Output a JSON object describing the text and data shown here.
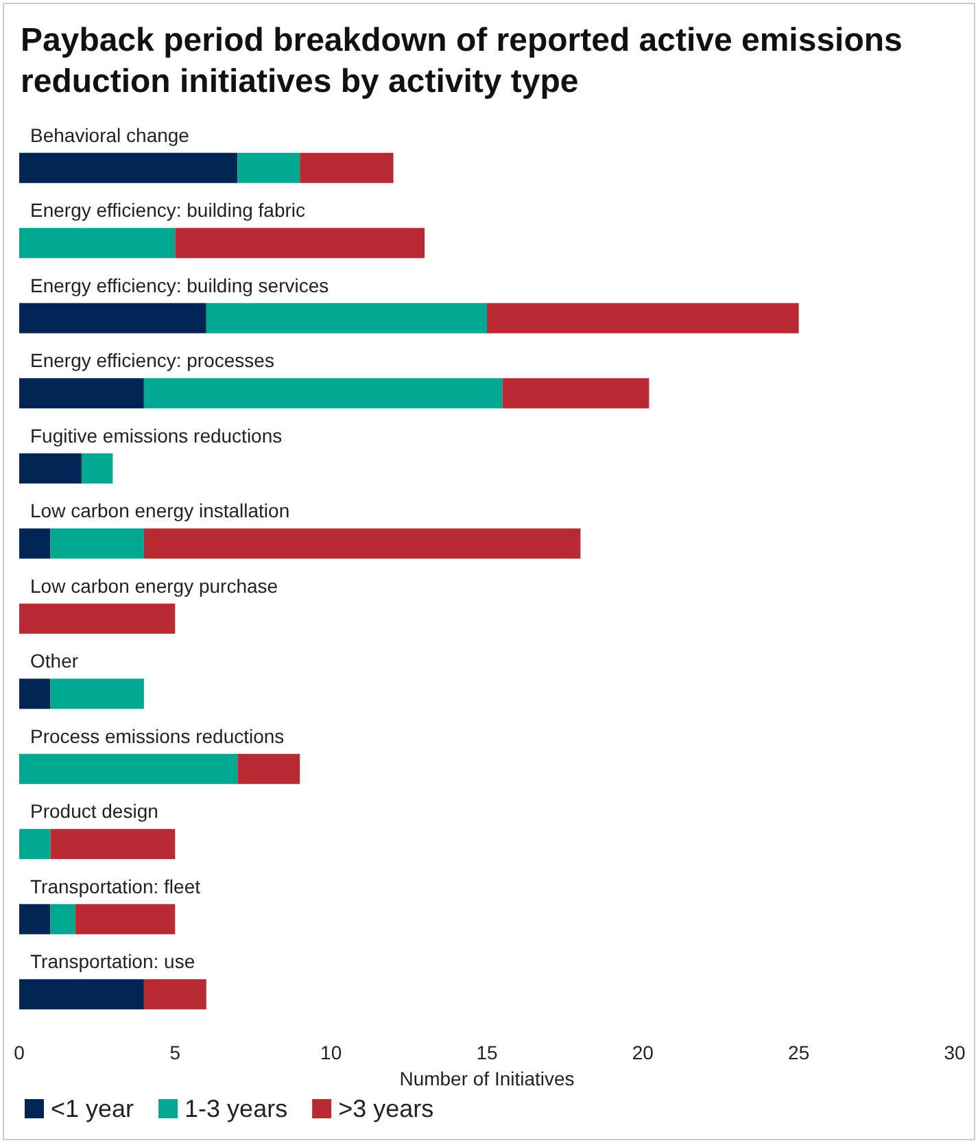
{
  "chart_data": {
    "type": "bar",
    "orientation": "horizontal",
    "stacked": true,
    "title": "Payback period breakdown of reported active emissions reduction initiatives by activity type",
    "xlabel": "Number of Initiatives",
    "categories": [
      "Behavioral change",
      "Energy efficiency: building fabric",
      "Energy efficiency: building services",
      "Energy efficiency: processes",
      "Fugitive emissions reductions",
      "Low carbon energy installation",
      "Low carbon energy purchase",
      "Other",
      "Process emissions reductions",
      "Product design",
      "Transportation: fleet",
      "Transportation: use"
    ],
    "series": [
      {
        "name": "<1 year",
        "color": "#002554",
        "values": [
          7,
          0,
          6,
          4,
          2,
          1,
          0,
          1,
          0,
          0,
          1,
          4
        ]
      },
      {
        "name": "1-3 years",
        "color": "#00a88f",
        "values": [
          2,
          5,
          9,
          11.5,
          1,
          3,
          0,
          3,
          7,
          1,
          0.8,
          0
        ]
      },
      {
        "name": ">3 years",
        "color": "#b92b33",
        "values": [
          3,
          8,
          10,
          4.7,
          0,
          14,
          5,
          0,
          2,
          4,
          3.2,
          2
        ]
      }
    ],
    "xlim": [
      0,
      30
    ],
    "xticks": [
      0,
      5,
      10,
      15,
      20,
      25,
      30
    ],
    "grid": false,
    "legend": "bottom left"
  }
}
